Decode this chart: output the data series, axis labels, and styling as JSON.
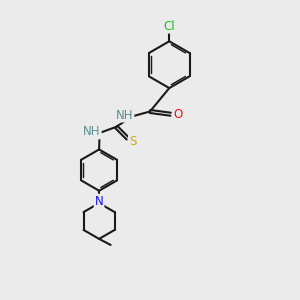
{
  "bg_color": "#ebebeb",
  "bond_color": "#1a1a1a",
  "bond_width": 1.5,
  "atom_colors": {
    "H": "#5a9090",
    "N": "#1010ee",
    "O": "#ee1010",
    "S": "#ccaa00",
    "Cl": "#22bb22"
  },
  "font_size": 8.5,
  "fig_size": [
    3.0,
    3.0
  ],
  "dpi": 100
}
